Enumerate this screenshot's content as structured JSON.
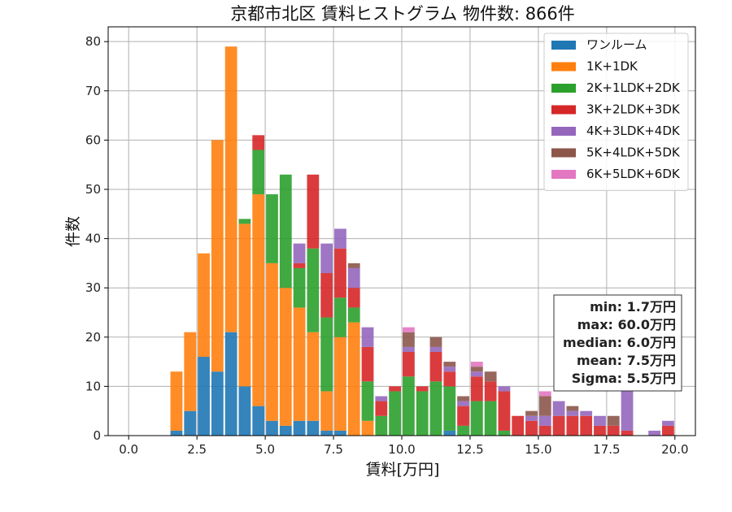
{
  "chart_data": {
    "type": "bar",
    "title": "京都市北区 賃料ヒストグラム  物件数: 866件",
    "xlabel": "賃料[万円]",
    "ylabel": "件数",
    "xlim": [
      -0.75,
      20.75
    ],
    "ylim": [
      0,
      83
    ],
    "xticks": [
      0.0,
      2.5,
      5.0,
      7.5,
      10.0,
      12.5,
      15.0,
      17.5,
      20.0
    ],
    "xtick_labels": [
      "0.0",
      "2.5",
      "5.0",
      "7.5",
      "10.0",
      "12.5",
      "15.0",
      "17.5",
      "20.0"
    ],
    "yticks": [
      0,
      10,
      20,
      30,
      40,
      50,
      60,
      70,
      80
    ],
    "ytick_labels": [
      "0",
      "10",
      "20",
      "30",
      "40",
      "50",
      "60",
      "70",
      "80"
    ],
    "grid": true,
    "stacked": true,
    "bin_width": 0.5,
    "legend_position": "top-right",
    "series": [
      {
        "name": "ワンルーム",
        "color": "#1f77b4",
        "bins": [
          [
            1.5,
            1
          ],
          [
            2.0,
            5
          ],
          [
            2.5,
            16
          ],
          [
            3.0,
            13
          ],
          [
            3.5,
            21
          ],
          [
            4.0,
            10
          ],
          [
            4.5,
            6
          ],
          [
            5.0,
            3
          ],
          [
            5.5,
            2
          ],
          [
            6.0,
            3
          ],
          [
            6.5,
            3
          ],
          [
            7.0,
            1
          ],
          [
            7.5,
            1
          ],
          [
            11.5,
            1
          ]
        ]
      },
      {
        "name": "1K+1DK",
        "color": "#ff7f0e",
        "bins": [
          [
            1.5,
            12
          ],
          [
            2.0,
            16
          ],
          [
            2.5,
            21
          ],
          [
            3.0,
            47
          ],
          [
            3.5,
            58
          ],
          [
            4.0,
            33
          ],
          [
            4.5,
            43
          ],
          [
            5.0,
            32
          ],
          [
            5.5,
            28
          ],
          [
            6.0,
            23
          ],
          [
            6.5,
            18
          ],
          [
            7.0,
            8
          ],
          [
            7.5,
            19
          ],
          [
            8.0,
            23
          ],
          [
            8.5,
            3
          ]
        ]
      },
      {
        "name": "2K+1LDK+2DK",
        "color": "#2ca02c",
        "bins": [
          [
            4.0,
            1
          ],
          [
            4.5,
            9
          ],
          [
            5.0,
            14
          ],
          [
            5.5,
            23
          ],
          [
            6.0,
            8
          ],
          [
            6.5,
            17
          ],
          [
            7.0,
            15
          ],
          [
            7.5,
            8
          ],
          [
            8.0,
            3
          ],
          [
            8.5,
            8
          ],
          [
            9.0,
            4
          ],
          [
            9.5,
            9
          ],
          [
            10.0,
            12
          ],
          [
            10.5,
            9
          ],
          [
            11.0,
            11
          ],
          [
            11.5,
            9
          ],
          [
            12.0,
            2
          ],
          [
            12.5,
            7
          ],
          [
            13.0,
            7
          ],
          [
            13.5,
            1
          ]
        ]
      },
      {
        "name": "3K+2LDK+3DK",
        "color": "#d62728",
        "bins": [
          [
            4.5,
            3
          ],
          [
            6.0,
            1
          ],
          [
            6.5,
            15
          ],
          [
            7.0,
            9
          ],
          [
            7.5,
            10
          ],
          [
            8.0,
            4
          ],
          [
            8.5,
            7
          ],
          [
            9.0,
            3
          ],
          [
            9.5,
            1
          ],
          [
            10.0,
            5
          ],
          [
            10.5,
            1
          ],
          [
            11.0,
            6
          ],
          [
            11.5,
            3
          ],
          [
            12.0,
            4
          ],
          [
            12.5,
            5
          ],
          [
            13.0,
            4
          ],
          [
            13.5,
            8
          ],
          [
            14.0,
            4
          ],
          [
            14.5,
            3
          ],
          [
            15.0,
            2
          ],
          [
            15.5,
            4
          ],
          [
            16.0,
            4
          ],
          [
            16.5,
            4
          ],
          [
            17.0,
            2
          ],
          [
            17.5,
            2
          ],
          [
            18.0,
            1
          ],
          [
            19.5,
            2
          ]
        ]
      },
      {
        "name": "4K+3LDK+4DK",
        "color": "#9467bd",
        "bins": [
          [
            6.0,
            4
          ],
          [
            7.0,
            6
          ],
          [
            7.5,
            4
          ],
          [
            8.0,
            4
          ],
          [
            8.5,
            4
          ],
          [
            9.0,
            1
          ],
          [
            10.0,
            1
          ],
          [
            11.0,
            1
          ],
          [
            11.5,
            1
          ],
          [
            12.0,
            1
          ],
          [
            12.5,
            1
          ],
          [
            13.5,
            1
          ],
          [
            14.5,
            1
          ],
          [
            15.0,
            2
          ],
          [
            15.5,
            3
          ],
          [
            16.0,
            1
          ],
          [
            16.5,
            1
          ],
          [
            17.0,
            2
          ],
          [
            18.0,
            10
          ],
          [
            19.0,
            1
          ],
          [
            19.5,
            1
          ]
        ]
      },
      {
        "name": "5K+4LDK+5DK",
        "color": "#8c564b",
        "bins": [
          [
            8.0,
            1
          ],
          [
            10.0,
            3
          ],
          [
            11.0,
            2
          ],
          [
            11.5,
            1
          ],
          [
            12.0,
            1
          ],
          [
            12.5,
            1
          ],
          [
            13.0,
            2
          ],
          [
            14.5,
            1
          ],
          [
            15.0,
            4
          ],
          [
            16.0,
            1
          ],
          [
            17.5,
            2
          ]
        ]
      },
      {
        "name": "6K+5LDK+6DK",
        "color": "#e377c2",
        "bins": [
          [
            10.0,
            1
          ],
          [
            12.5,
            1
          ],
          [
            15.0,
            1
          ]
        ]
      }
    ],
    "stats": [
      "min: 1.7万円",
      "max: 60.0万円",
      "median: 6.0万円",
      "mean: 7.5万円",
      "Sigma: 5.5万円"
    ]
  }
}
